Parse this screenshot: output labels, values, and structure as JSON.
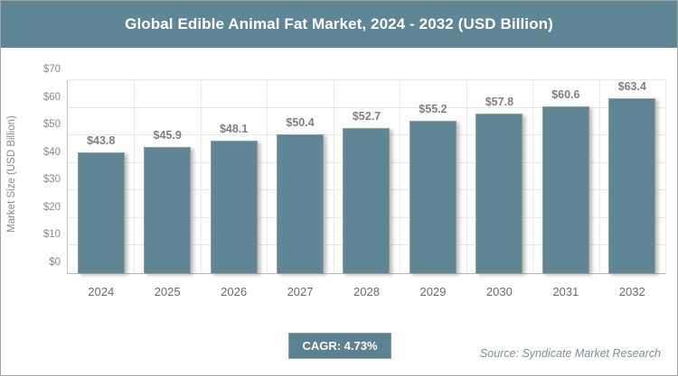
{
  "header": {
    "title": "Global Edible Animal Fat Market, 2024 - 2032 (USD Billion)"
  },
  "chart_data": {
    "type": "bar",
    "title": "Global Edible Animal Fat Market, 2024 - 2032 (USD Billion)",
    "categories": [
      "2024",
      "2025",
      "2026",
      "2027",
      "2028",
      "2029",
      "2030",
      "2031",
      "2032"
    ],
    "values": [
      43.8,
      45.9,
      48.1,
      50.4,
      52.7,
      55.2,
      57.8,
      60.6,
      63.4
    ],
    "value_labels": [
      "$43.8",
      "$45.9",
      "$48.1",
      "$50.4",
      "$52.7",
      "$55.2",
      "$57.8",
      "$60.6",
      "$63.4"
    ],
    "xlabel": "",
    "ylabel": "Market Size (USD Billion)",
    "ylim": [
      0,
      70
    ],
    "ytick_step": 10,
    "yticks": [
      "$0",
      "$10",
      "$20",
      "$30",
      "$40",
      "$50",
      "$60",
      "$70"
    ],
    "grid": true,
    "legend": false,
    "bar_color": "#5f8695"
  },
  "footer": {
    "cagr_label": "CAGR: 4.73%",
    "source": "Source: Syndicate Market Research"
  },
  "colors": {
    "accent_slate": "#5f8695",
    "header_bg": "#5f8695",
    "badge_bg": "#5c8191",
    "label_gray": "#7f7f7f",
    "axis_gray": "#8a8a8a",
    "source_gray": "#7d8d99",
    "frame_border": "#a3a3a3"
  }
}
